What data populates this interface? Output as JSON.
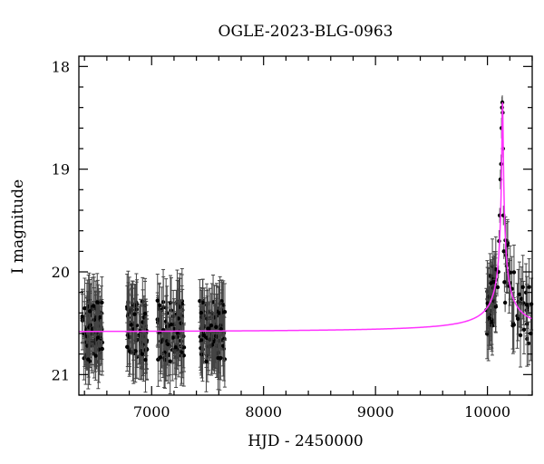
{
  "chart_data": {
    "type": "scatter",
    "title": "OGLE-2023-BLG-0963",
    "xlabel": "HJD - 2450000",
    "ylabel": "I magnitude",
    "xlim": [
      6350,
      10400
    ],
    "ylim": [
      21.2,
      17.9
    ],
    "y_inverted": true,
    "x_ticks": [
      7000,
      8000,
      9000,
      10000
    ],
    "x_tick_labels": [
      "7000",
      "8000",
      "9000",
      "10000"
    ],
    "y_ticks": [
      18,
      19,
      20,
      21
    ],
    "y_tick_labels": [
      "18",
      "19",
      "20",
      "21"
    ],
    "grid": false,
    "legend": "none",
    "colors": {
      "points": "#000000",
      "errorbars": "#444444",
      "model": "#ff33ff"
    },
    "model": {
      "name": "",
      "baseline_mag": 20.59,
      "t0": 10135,
      "peak_mag": 18.35,
      "width_days": 10
    },
    "seasons": [
      {
        "start": 6380,
        "end": 6560,
        "n": 80
      },
      {
        "start": 6780,
        "end": 6960,
        "n": 75
      },
      {
        "start": 7050,
        "end": 7290,
        "n": 85
      },
      {
        "start": 7430,
        "end": 7660,
        "n": 85
      },
      {
        "start": 9990,
        "end": 10080,
        "n": 40
      },
      {
        "start": 10160,
        "end": 10400,
        "n": 35
      }
    ],
    "peak_points": [
      [
        10092,
        20.15
      ],
      [
        10098,
        20.0
      ],
      [
        10104,
        19.7
      ],
      [
        10110,
        19.45
      ],
      [
        10116,
        19.1
      ],
      [
        10122,
        18.95
      ],
      [
        10126,
        18.6
      ],
      [
        10130,
        18.4
      ],
      [
        10133,
        18.35
      ],
      [
        10136,
        18.45
      ],
      [
        10139,
        18.8
      ],
      [
        10143,
        19.45
      ],
      [
        10147,
        19.8
      ],
      [
        10152,
        20.1
      ],
      [
        10158,
        20.3
      ]
    ]
  }
}
